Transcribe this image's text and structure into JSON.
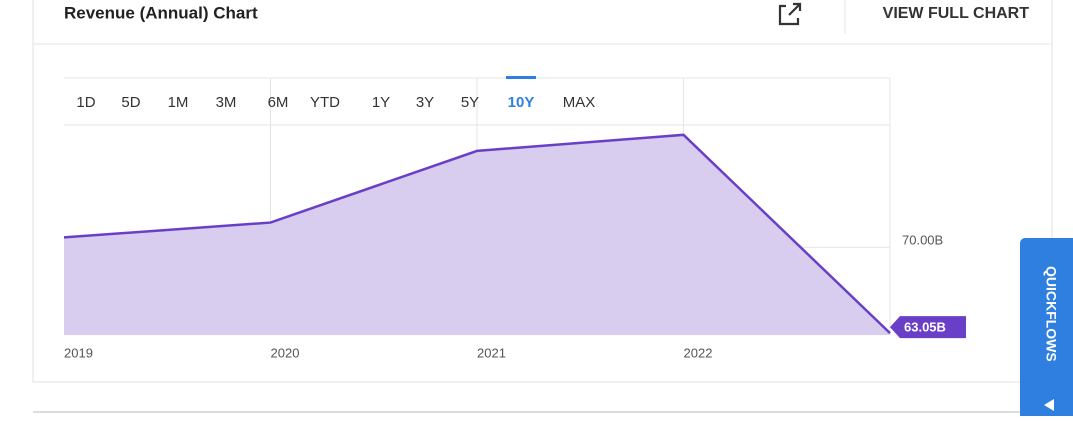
{
  "header": {
    "title": "Revenue (Annual) Chart",
    "link": "VIEW FULL CHART"
  },
  "ranges": [
    "1D",
    "5D",
    "1M",
    "3M",
    "6M",
    "YTD",
    "1Y",
    "3Y",
    "5Y",
    "10Y",
    "MAX"
  ],
  "selected_range": 9,
  "side_tab": "QUICKFLOWS",
  "chart_data": {
    "type": "area",
    "categories": [
      "2019",
      "2020",
      "2021",
      "2022",
      null
    ],
    "values": [
      70.8,
      72.0,
      77.8,
      79.1,
      63.05
    ],
    "value_labels": [
      null,
      null,
      null,
      null,
      "63.05B"
    ],
    "color": "#6a3fc8",
    "fill": "#d8cdef",
    "ylim": [
      62.9,
      83.7
    ],
    "yticks": [
      {
        "value": 70,
        "label": "70.00B"
      }
    ],
    "grid": true
  }
}
